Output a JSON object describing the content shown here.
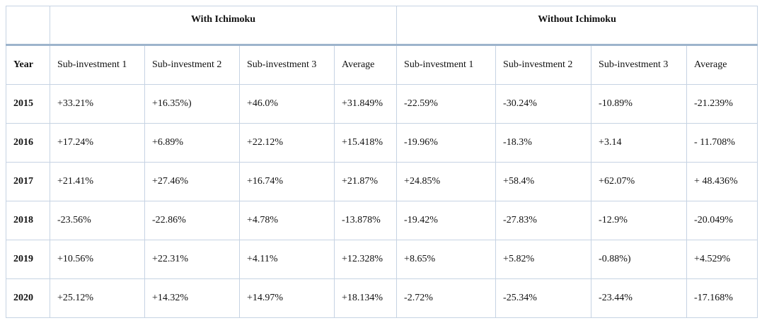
{
  "groups": [
    "With Ichimoku",
    "Without Ichimoku"
  ],
  "columns": [
    "Year",
    "Sub-investment 1",
    "Sub-investment 2",
    "Sub-investment 3",
    "Average",
    "Sub-investment 1",
    "Sub-investment 2",
    "Sub-investment 3",
    "Average"
  ],
  "rows": [
    [
      "2015",
      "+33.21%",
      "+16.35%)",
      "+46.0%",
      "+31.849%",
      "-22.59%",
      "-30.24%",
      "-10.89%",
      "-21.239%"
    ],
    [
      "2016",
      "+17.24%",
      "+6.89%",
      "+22.12%",
      "+15.418%",
      "-19.96%",
      "-18.3%",
      "+3.14",
      "- 11.708%"
    ],
    [
      "2017",
      "+21.41%",
      "+27.46%",
      "+16.74%",
      "+21.87%",
      "+24.85%",
      "+58.4%",
      "+62.07%",
      "+ 48.436%"
    ],
    [
      "2018",
      "-23.56%",
      "-22.86%",
      "+4.78%",
      "-13.878%",
      "-19.42%",
      "-27.83%",
      "-12.9%",
      "-20.049%"
    ],
    [
      "2019",
      "+10.56%",
      "+22.31%",
      "+4.11%",
      "+12.328%",
      "+8.65%",
      "+5.82%",
      "-0.88%)",
      "+4.529%"
    ],
    [
      "2020",
      "+25.12%",
      "+14.32%",
      "+14.97%",
      "+18.134%",
      "-2.72%",
      "-25.34%",
      "-23.44%",
      "-17.168%"
    ]
  ]
}
